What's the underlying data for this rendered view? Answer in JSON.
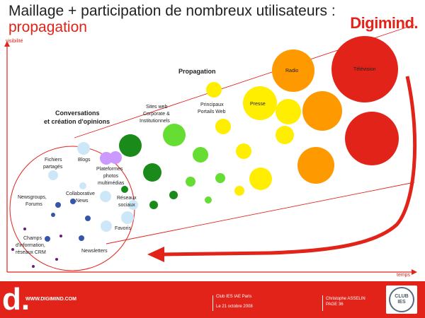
{
  "title": {
    "line1": "Maillage + participation de nombreux utilisateurs :",
    "line2": "propagation"
  },
  "brand": {
    "logo": "Digimind.",
    "color": "#e2231a"
  },
  "axes": {
    "y_label": "visibilité",
    "x_label": "temps"
  },
  "labels": {
    "conversations_1": "Conversations",
    "conversations_2": "et création d'opinions",
    "propagation": "Propagation",
    "fichiers_1": "Fichiers",
    "fichiers_2": "partagés",
    "blogs": "Blogs",
    "plateformes_1": "Plateformes",
    "plateformes_2": "photos",
    "plateformes_3": "multimédias",
    "newsgroups_1": "Newsgroups,",
    "newsgroups_2": "Forums",
    "collaborative_1": "Collaborative",
    "collaborative_2": "News",
    "reseaux_1": "Réseaux",
    "reseaux_2": "sociaux",
    "favoris": "Favoris",
    "champs_1": "Champs",
    "champs_2": "d'information,",
    "champs_3": "réseaux CRM",
    "newsletters": "Newsletters",
    "sites_1": "Sites web",
    "sites_2": "Corporate &",
    "sites_3": "Institutionnels",
    "portails_1": "Principaux",
    "portails_2": "Portails Web",
    "presse": "Presse",
    "radio": "Radio",
    "television": "Télévision"
  },
  "footer": {
    "logo": "d.",
    "url": "WWW.DIGIMIND.COM",
    "club": "Club IES IAE Paris",
    "date": "Le 21 octobre 2008",
    "author": "Christophe ASSELIN",
    "page": "PAGE 36",
    "badge_top": "CLUB",
    "badge_bottom": "IES"
  },
  "colors": {
    "accent_red": "#e2231a",
    "dark_green": "#1a8a1a",
    "light_green": "#66dd33",
    "yellow": "#ffee00",
    "orange": "#ff9900",
    "light_blue": "#cce8f8",
    "purple": "#cc99ff",
    "dark_blue": "#3355aa",
    "dark_purple": "#6a1b7a"
  }
}
